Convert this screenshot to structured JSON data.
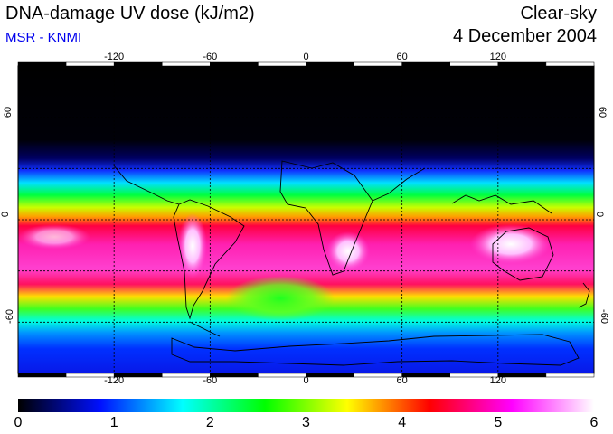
{
  "header": {
    "title": "DNA-damage UV dose (kJ/m2)",
    "subtitle": "MSR - KNMI",
    "mode": "Clear-sky",
    "date": "4 December 2004"
  },
  "map": {
    "lon_ticks": [
      "-120",
      "-60",
      "0",
      "60",
      "120"
    ],
    "lat_ticks": [
      "60",
      "0",
      "-60"
    ],
    "lon_values": [
      -120,
      -60,
      0,
      60,
      120
    ],
    "lat_values": [
      60,
      0,
      -60
    ],
    "lon_range": [
      -180,
      180
    ],
    "lat_range": [
      -90,
      90
    ]
  },
  "colorbar": {
    "labels": [
      "0",
      "1",
      "2",
      "3",
      "4",
      "5",
      "6"
    ],
    "min": 0,
    "max": 6,
    "colors": [
      "#000000",
      "#0010ff",
      "#00ffff",
      "#00ff00",
      "#ffff00",
      "#ff0000",
      "#ff00ff",
      "#ffffff"
    ]
  }
}
